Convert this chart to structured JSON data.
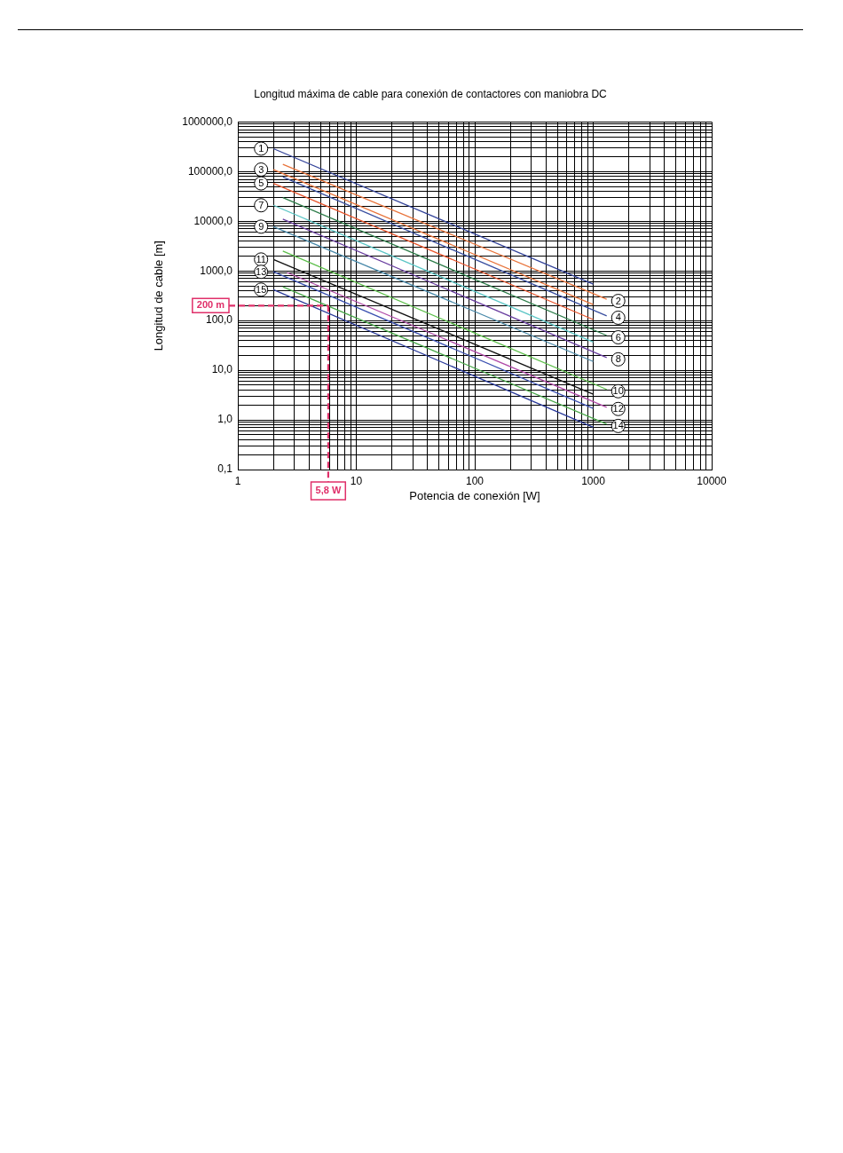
{
  "chart_data": {
    "type": "line",
    "title": "Longitud máxima de cable para conexión de contactores con maniobra DC",
    "xlabel": "Potencia de conexión [W]",
    "ylabel": "Longitud de cable [m]",
    "log": "xy",
    "grid": true,
    "legend": false,
    "marker": "none",
    "line_style": "solid",
    "xlim": [
      1,
      10000
    ],
    "ylim": [
      0.1,
      1000000
    ],
    "xticks": [
      1,
      {
        "value": 2,
        "label": null
      },
      {
        "value": 3,
        "label": null
      },
      {
        "value": 4,
        "label": null
      },
      {
        "value": 5,
        "label": null
      },
      {
        "value": 6,
        "label": null
      },
      {
        "value": 7,
        "label": null
      },
      {
        "value": 8,
        "label": null
      },
      {
        "value": 9,
        "label": null
      },
      10,
      {
        "value": 20,
        "label": null
      },
      {
        "value": 30,
        "label": null
      },
      {
        "value": 40,
        "label": null
      },
      {
        "value": 50,
        "label": null
      },
      {
        "value": 60,
        "label": null
      },
      {
        "value": 70,
        "label": null
      },
      {
        "value": 80,
        "label": null
      },
      {
        "value": 90,
        "label": null
      },
      100,
      {
        "value": 200,
        "label": null
      },
      {
        "value": 300,
        "label": null
      },
      {
        "value": 400,
        "label": null
      },
      {
        "value": 500,
        "label": null
      },
      {
        "value": 600,
        "label": null
      },
      {
        "value": 700,
        "label": null
      },
      {
        "value": 800,
        "label": null
      },
      {
        "value": 900,
        "label": null
      },
      1000,
      {
        "value": 2000,
        "label": null
      },
      {
        "value": 3000,
        "label": null
      },
      {
        "value": 4000,
        "label": null
      },
      {
        "value": 5000,
        "label": null
      },
      {
        "value": 6000,
        "label": null
      },
      {
        "value": 7000,
        "label": null
      },
      {
        "value": 8000,
        "label": null
      },
      {
        "value": 9000,
        "label": null
      },
      10000
    ],
    "yticks": [
      {
        "value": 0.1,
        "label": "0,1"
      },
      {
        "value": 0.2,
        "label": null
      },
      {
        "value": 0.3,
        "label": null
      },
      {
        "value": 0.4,
        "label": null
      },
      {
        "value": 0.5,
        "label": null
      },
      {
        "value": 0.6,
        "label": null
      },
      {
        "value": 0.7,
        "label": null
      },
      {
        "value": 0.8,
        "label": null
      },
      {
        "value": 0.9,
        "label": null
      },
      {
        "value": 1,
        "label": "1,0"
      },
      {
        "value": 2,
        "label": null
      },
      {
        "value": 3,
        "label": null
      },
      {
        "value": 4,
        "label": null
      },
      {
        "value": 5,
        "label": null
      },
      {
        "value": 6,
        "label": null
      },
      {
        "value": 7,
        "label": null
      },
      {
        "value": 8,
        "label": null
      },
      {
        "value": 9,
        "label": null
      },
      {
        "value": 10,
        "label": "10,0"
      },
      {
        "value": 20,
        "label": null
      },
      {
        "value": 30,
        "label": null
      },
      {
        "value": 40,
        "label": null
      },
      {
        "value": 50,
        "label": null
      },
      {
        "value": 60,
        "label": null
      },
      {
        "value": 70,
        "label": null
      },
      {
        "value": 80,
        "label": null
      },
      {
        "value": 90,
        "label": null
      },
      {
        "value": 100,
        "label": "100,0"
      },
      {
        "value": 200,
        "label": null
      },
      {
        "value": 300,
        "label": null
      },
      {
        "value": 400,
        "label": null
      },
      {
        "value": 500,
        "label": null
      },
      {
        "value": 600,
        "label": null
      },
      {
        "value": 700,
        "label": null
      },
      {
        "value": 800,
        "label": null
      },
      {
        "value": 900,
        "label": null
      },
      {
        "value": 1000,
        "label": "1000,0"
      },
      {
        "value": 2000,
        "label": null
      },
      {
        "value": 3000,
        "label": null
      },
      {
        "value": 4000,
        "label": null
      },
      {
        "value": 5000,
        "label": null
      },
      {
        "value": 6000,
        "label": null
      },
      {
        "value": 7000,
        "label": null
      },
      {
        "value": 8000,
        "label": null
      },
      {
        "value": 9000,
        "label": null
      },
      {
        "value": 10000,
        "label": "10000,0"
      },
      {
        "value": 20000,
        "label": null
      },
      {
        "value": 30000,
        "label": null
      },
      {
        "value": 40000,
        "label": null
      },
      {
        "value": 50000,
        "label": null
      },
      {
        "value": 60000,
        "label": null
      },
      {
        "value": 70000,
        "label": null
      },
      {
        "value": 80000,
        "label": null
      },
      {
        "value": 90000,
        "label": null
      },
      {
        "value": 100000,
        "label": "100000,0"
      },
      {
        "value": 200000,
        "label": null
      },
      {
        "value": 300000,
        "label": null
      },
      {
        "value": 400000,
        "label": null
      },
      {
        "value": 500000,
        "label": null
      },
      {
        "value": 600000,
        "label": null
      },
      {
        "value": 700000,
        "label": null
      },
      {
        "value": 800000,
        "label": null
      },
      {
        "value": 900000,
        "label": null
      },
      {
        "value": 1000000,
        "label": "1000000,0"
      }
    ],
    "series": [
      {
        "name": "1",
        "color": "#34449a",
        "x": [
          2,
          1000
        ],
        "values": [
          290000,
          540
        ]
      },
      {
        "name": "2",
        "color": "#e8743b",
        "x": [
          2.4,
          1300
        ],
        "values": [
          140000,
          270
        ]
      },
      {
        "name": "3",
        "color": "#e8743b",
        "x": [
          2,
          1000
        ],
        "values": [
          110000,
          210
        ]
      },
      {
        "name": "4",
        "color": "#3a4fa0",
        "x": [
          2.4,
          1300
        ],
        "values": [
          78000,
          124
        ]
      },
      {
        "name": "5",
        "color": "#e8542b",
        "x": [
          2,
          1000
        ],
        "values": [
          58000,
          105
        ]
      },
      {
        "name": "6",
        "color": "#2e7d4a",
        "x": [
          2.4,
          1300
        ],
        "values": [
          30000,
          50
        ]
      },
      {
        "name": "7",
        "color": "#5cc6c6",
        "x": [
          2,
          1000
        ],
        "values": [
          21000,
          37
        ]
      },
      {
        "name": "8",
        "color": "#6a3fa0",
        "x": [
          2.4,
          1300
        ],
        "values": [
          11000,
          18
        ]
      },
      {
        "name": "9",
        "color": "#4a8aaa",
        "x": [
          2,
          1000
        ],
        "values": [
          7800,
          15
        ]
      },
      {
        "name": "10",
        "color": "#5cbf4a",
        "x": [
          2.4,
          1300
        ],
        "values": [
          2500,
          4.1
        ]
      },
      {
        "name": "11",
        "color": "#111111",
        "x": [
          2,
          1000
        ],
        "values": [
          1700,
          3.3
        ]
      },
      {
        "name": "12",
        "color": "#b04aa8",
        "x": [
          2.6,
          1300
        ],
        "values": [
          930,
          1.8
        ]
      },
      {
        "name": "13",
        "color": "#3a50b0",
        "x": [
          2,
          1000
        ],
        "values": [
          960,
          1.7
        ]
      },
      {
        "name": "14",
        "color": "#4aa84a",
        "x": [
          2.4,
          1300
        ],
        "values": [
          480,
          0.82
        ]
      },
      {
        "name": "15",
        "color": "#2a3a9a",
        "x": [
          2,
          1000
        ],
        "values": [
          420,
          0.71
        ]
      }
    ],
    "ref_lines": [
      {
        "axis": "y",
        "value": 200,
        "label": "200 m",
        "color": "#e0306a",
        "line_style": "dashed"
      },
      {
        "axis": "x",
        "value": 5.8,
        "label": "5,8 W",
        "color": "#e0306a",
        "line_style": "dashed"
      }
    ]
  }
}
